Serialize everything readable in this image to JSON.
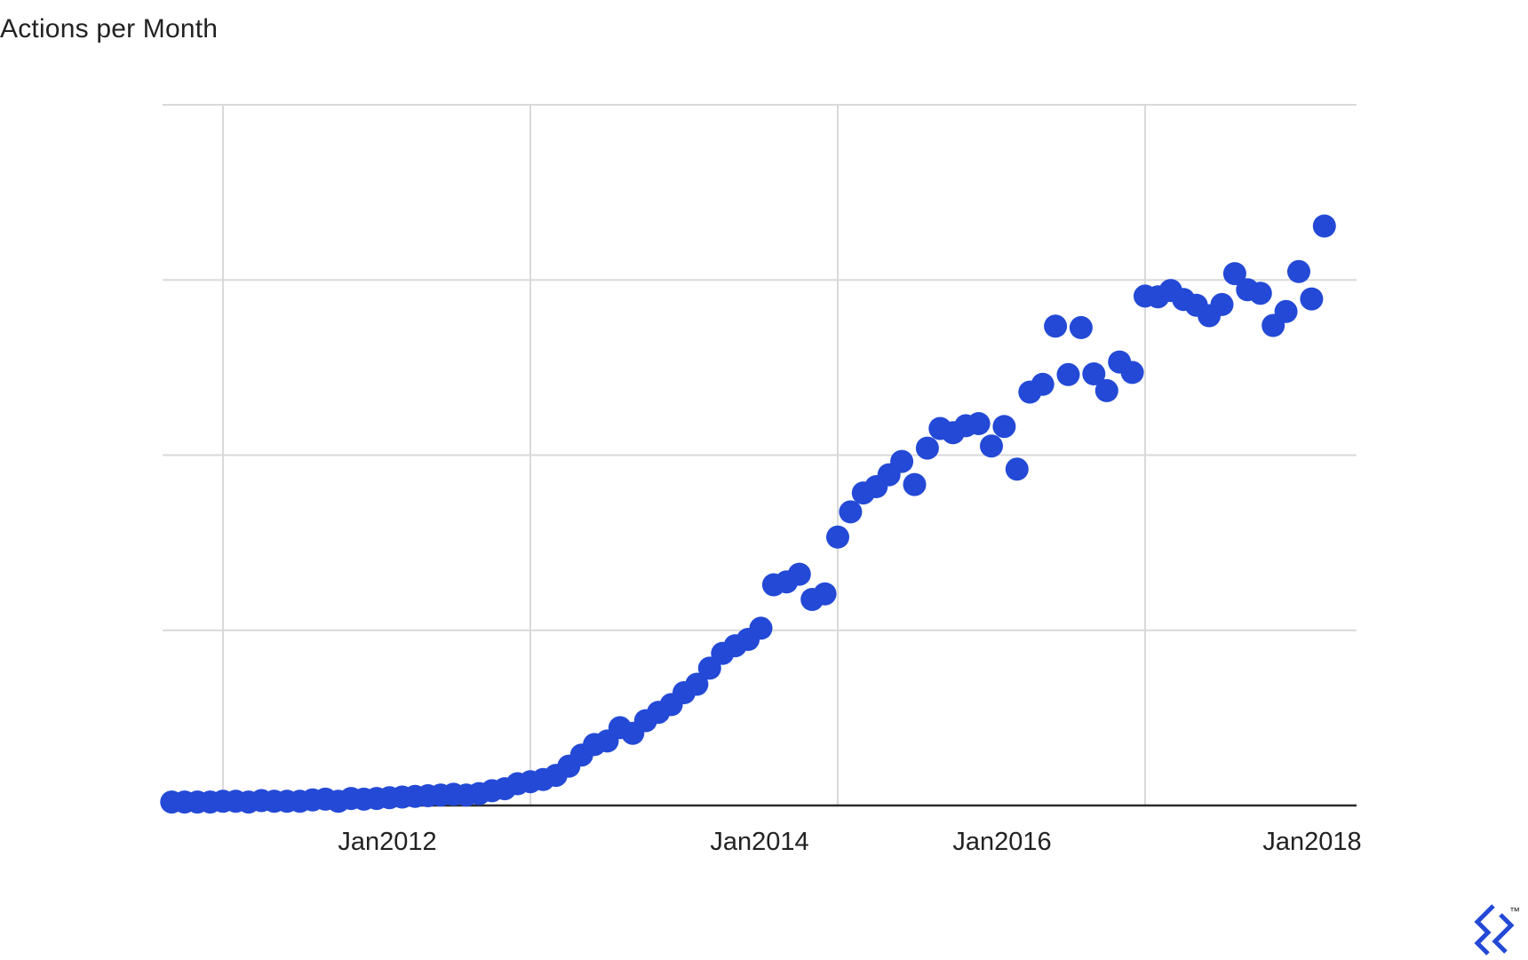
{
  "chart_data": {
    "type": "scatter",
    "title": "Actions per Month",
    "xlabel": "",
    "ylabel": "",
    "x_tick_labels": [
      "Jan2012",
      "Jan2014",
      "Jan2016",
      "Jan2018"
    ],
    "y_tick_labels": [],
    "grid": true,
    "legend": "none",
    "marker_color": "#2349d6",
    "ylim": [
      0,
      100
    ],
    "series": [
      {
        "x": [
          "2010-09",
          "2010-10",
          "2010-11",
          "2010-12",
          "2011-01",
          "2011-02",
          "2011-03",
          "2011-04",
          "2011-05",
          "2011-06",
          "2011-07",
          "2011-08",
          "2011-09",
          "2011-10",
          "2011-11",
          "2011-12",
          "2012-01",
          "2012-02",
          "2012-03",
          "2012-04",
          "2012-05",
          "2012-06",
          "2012-07",
          "2012-08",
          "2012-09",
          "2012-10",
          "2012-11",
          "2012-12",
          "2013-01",
          "2013-02",
          "2013-03",
          "2013-04",
          "2013-05",
          "2013-06",
          "2013-07",
          "2013-08",
          "2013-09",
          "2013-10",
          "2013-11",
          "2013-12",
          "2014-01",
          "2014-02",
          "2014-03",
          "2014-04",
          "2014-05",
          "2014-06",
          "2014-07",
          "2014-08",
          "2014-09",
          "2014-10",
          "2014-11",
          "2014-12",
          "2015-01",
          "2015-02",
          "2015-03",
          "2015-04",
          "2015-05",
          "2015-06",
          "2015-07",
          "2015-08",
          "2015-09",
          "2015-10",
          "2015-11",
          "2015-12",
          "2016-01",
          "2016-02",
          "2016-03",
          "2016-04",
          "2016-05",
          "2016-06",
          "2016-07",
          "2016-08",
          "2016-09",
          "2016-10",
          "2016-11",
          "2016-12",
          "2017-01",
          "2017-02",
          "2017-03",
          "2017-04",
          "2017-05",
          "2017-06",
          "2017-07",
          "2017-08",
          "2017-09",
          "2017-10",
          "2017-11",
          "2017-12",
          "2018-01",
          "2018-02",
          "2018-03"
        ],
        "y": [
          0.5,
          0.5,
          0.5,
          0.5,
          0.6,
          0.6,
          0.5,
          0.7,
          0.6,
          0.6,
          0.6,
          0.8,
          0.9,
          0.6,
          1.0,
          0.9,
          1.0,
          1.1,
          1.2,
          1.3,
          1.4,
          1.5,
          1.6,
          1.5,
          1.7,
          2.1,
          2.4,
          3.1,
          3.4,
          3.7,
          4.3,
          5.6,
          7.2,
          8.7,
          9.2,
          11.1,
          10.3,
          12.1,
          13.3,
          14.4,
          16.1,
          17.3,
          19.6,
          21.7,
          22.8,
          23.7,
          25.3,
          31.5,
          31.9,
          33.0,
          29.4,
          30.2,
          38.3,
          41.9,
          44.6,
          45.5,
          47.2,
          49.1,
          45.8,
          51.0,
          53.8,
          53.2,
          54.2,
          54.5,
          51.3,
          54.1,
          48.0,
          59.0,
          60.1,
          68.4,
          61.5,
          68.2,
          61.6,
          59.2,
          63.3,
          61.8,
          72.7,
          72.6,
          73.5,
          72.2,
          71.4,
          69.9,
          71.5,
          75.9,
          73.6,
          73.1,
          68.5,
          70.5,
          76.2,
          72.3,
          82.7
        ]
      }
    ]
  }
}
